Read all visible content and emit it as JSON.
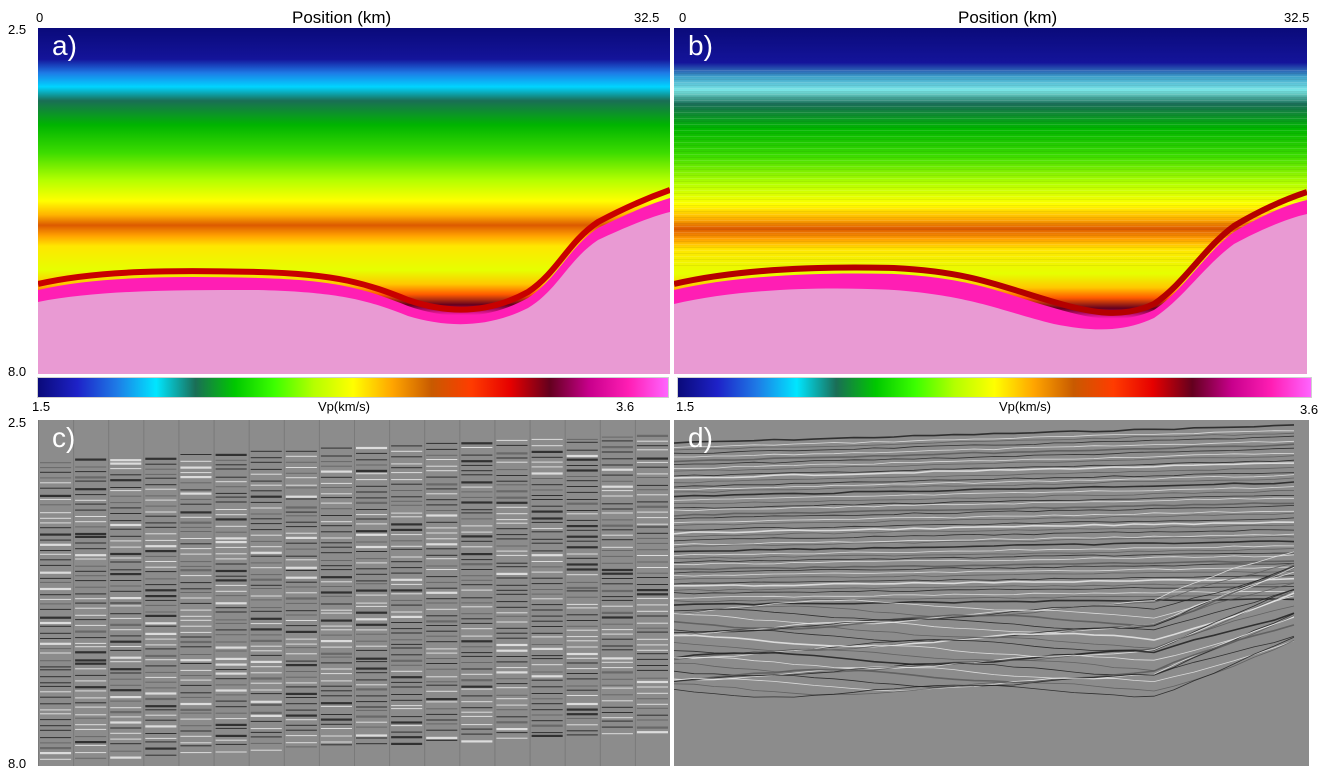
{
  "top_axis": {
    "title": "Position (km)",
    "x_min": "0",
    "x_max": "32.5"
  },
  "depth_axis": {
    "top": "2.5",
    "bottom": "8.0"
  },
  "panels": [
    {
      "tag": "a)"
    },
    {
      "tag": "b)"
    },
    {
      "tag": "c)"
    },
    {
      "tag": "d)"
    }
  ],
  "colorbar": {
    "min": "1.5",
    "max": "3.6",
    "label": "Vp(km/s)",
    "colors": [
      "#0a0a7a",
      "#1e22c8",
      "#1e7be6",
      "#00e6ff",
      "#1a6e56",
      "#00c800",
      "#3cff00",
      "#b4ff00",
      "#ffff00",
      "#ffa500",
      "#c85a00",
      "#ff3c00",
      "#e60000",
      "#64001e",
      "#c8008c",
      "#ff1eb4",
      "#ff64ff"
    ]
  },
  "velocity_model": {
    "water": "#0a0a7a",
    "basement": "#e99ad3"
  }
}
